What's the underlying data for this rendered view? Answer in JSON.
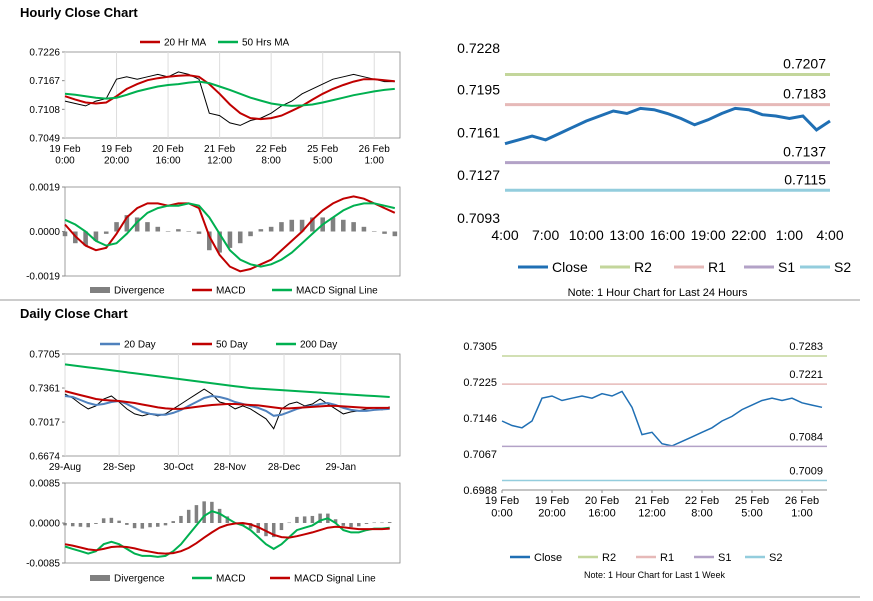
{
  "headings": [
    "Hourly Close Chart",
    "Daily Close Chart"
  ],
  "chart_data": [
    {
      "type": "line",
      "x": [
        0,
        4,
        8,
        12,
        16,
        20,
        24,
        28,
        32,
        36,
        40,
        44,
        48,
        52,
        56,
        60,
        64,
        68,
        72,
        76,
        80,
        84,
        88,
        92,
        96,
        100,
        104,
        108,
        112,
        116,
        120,
        124,
        128
      ],
      "values": [
        0.7125,
        0.712,
        0.7115,
        0.7125,
        0.713,
        0.717,
        0.7175,
        0.717,
        0.7175,
        0.718,
        0.7175,
        0.7185,
        0.718,
        0.717,
        0.71,
        0.7095,
        0.708,
        0.7075,
        0.7085,
        0.709,
        0.71,
        0.7115,
        0.7125,
        0.714,
        0.715,
        0.716,
        0.717,
        0.7175,
        0.718,
        0.7175,
        0.717,
        0.7165,
        0.7165
      ],
      "color": "#000000",
      "series": [
        {
          "name": "20 Hr MA",
          "color": "#c00000",
          "values": [
            0.7135,
            0.7128,
            0.7122,
            0.712,
            0.7122,
            0.7135,
            0.715,
            0.716,
            0.7168,
            0.7172,
            0.7175,
            0.7177,
            0.7178,
            0.7175,
            0.716,
            0.714,
            0.7118,
            0.71,
            0.709,
            0.7088,
            0.709,
            0.7095,
            0.7105,
            0.7115,
            0.7128,
            0.714,
            0.715,
            0.7158,
            0.7165,
            0.717,
            0.717,
            0.7168,
            0.7166
          ]
        },
        {
          "name": "50 Hrs MA",
          "color": "#00b050",
          "values": [
            0.714,
            0.7138,
            0.7135,
            0.7132,
            0.713,
            0.7132,
            0.7138,
            0.7145,
            0.715,
            0.7155,
            0.7158,
            0.716,
            0.7163,
            0.7165,
            0.7162,
            0.7155,
            0.7148,
            0.714,
            0.7132,
            0.7126,
            0.712,
            0.7117,
            0.7115,
            0.7116,
            0.7118,
            0.7122,
            0.7127,
            0.7132,
            0.7137,
            0.7141,
            0.7145,
            0.7148,
            0.715
          ]
        }
      ],
      "xlim": [
        0,
        130
      ],
      "xticks": [
        {
          "value": 0,
          "label": "19 Feb\n0:00"
        },
        {
          "value": 20,
          "label": "19 Feb\n20:00"
        },
        {
          "value": 40,
          "label": "20 Feb\n16:00"
        },
        {
          "value": 60,
          "label": "21 Feb\n12:00"
        },
        {
          "value": 80,
          "label": "22 Feb\n8:00"
        },
        {
          "value": 100,
          "label": "25 Feb\n5:00"
        },
        {
          "value": 120,
          "label": "26 Feb\n1:00"
        }
      ],
      "ylim": [
        0.7049,
        0.7226
      ],
      "yticks": [
        0.7049,
        0.7108,
        0.7167,
        0.7226
      ],
      "grid": true
    },
    {
      "type": "combo",
      "x": [
        0,
        4,
        8,
        12,
        16,
        20,
        24,
        28,
        32,
        36,
        40,
        44,
        48,
        52,
        56,
        60,
        64,
        68,
        72,
        76,
        80,
        84,
        88,
        92,
        96,
        100,
        104,
        108,
        112,
        116,
        120,
        124,
        128
      ],
      "series": [
        {
          "name": "Divergence",
          "color": "#808080",
          "kind": "bar",
          "values": [
            -0.0002,
            -0.0005,
            -0.0006,
            -0.0004,
            -0.0001,
            0.0004,
            0.0007,
            0.0006,
            0.0004,
            0.0002,
            0,
            0.0001,
            0,
            -0.0001,
            -0.0008,
            -0.0009,
            -0.0007,
            -0.0005,
            -0.0002,
            0.0001,
            0.0002,
            0.0004,
            0.0005,
            0.0005,
            0.0006,
            0.0006,
            0.0006,
            0.0005,
            0.0004,
            0.0002,
            0,
            -0.0001,
            -0.0002
          ]
        },
        {
          "name": "MACD",
          "color": "#c00000",
          "values": [
            0.0003,
            -0.0002,
            -0.0006,
            -0.0008,
            -0.0007,
            -0.0001,
            0.0006,
            0.001,
            0.0012,
            0.0012,
            0.0011,
            0.0012,
            0.0012,
            0.001,
            -0.0002,
            -0.001,
            -0.0015,
            -0.0017,
            -0.0016,
            -0.0014,
            -0.0012,
            -0.0008,
            -0.0004,
            0.0,
            0.0005,
            0.0009,
            0.0012,
            0.0014,
            0.0015,
            0.0014,
            0.0012,
            0.001,
            0.0008
          ]
        },
        {
          "name": "MACD Signal Line",
          "color": "#00b050",
          "values": [
            0.0005,
            0.0003,
            0.0,
            -0.0004,
            -0.0006,
            -0.0005,
            -0.0001,
            0.0004,
            0.0008,
            0.001,
            0.0011,
            0.0011,
            0.0012,
            0.0011,
            0.0006,
            -0.0001,
            -0.0008,
            -0.0012,
            -0.0014,
            -0.0015,
            -0.0014,
            -0.0012,
            -0.0009,
            -0.0005,
            -0.0001,
            0.0003,
            0.0006,
            0.0009,
            0.0011,
            0.0012,
            0.0012,
            0.0011,
            0.001
          ]
        }
      ],
      "xlim": [
        0,
        130
      ],
      "ylim": [
        -0.0019,
        0.0019
      ],
      "yticks": [
        -0.0019,
        {
          "value": 0,
          "label": "0.0000"
        },
        0.0019
      ]
    },
    {
      "type": "line",
      "x": [
        0,
        1,
        2,
        3,
        4,
        5,
        6,
        7,
        8,
        9,
        10,
        11,
        12,
        13,
        14,
        15,
        16,
        17,
        18,
        19,
        20,
        21,
        22,
        23,
        24
      ],
      "series": [
        {
          "name": "Close",
          "color": "#1f6fb4",
          "values": [
            0.7152,
            0.7155,
            0.7158,
            0.7155,
            0.716,
            0.7165,
            0.717,
            0.7174,
            0.7178,
            0.7176,
            0.718,
            0.7179,
            0.7176,
            0.7172,
            0.7167,
            0.7171,
            0.7176,
            0.718,
            0.7179,
            0.7175,
            0.7174,
            0.7172,
            0.7174,
            0.7163,
            0.717
          ]
        },
        {
          "name": "R2",
          "color": "#c3d69b",
          "value": 0.7207
        },
        {
          "name": "R1",
          "color": "#e6b9b8",
          "value": 0.7183
        },
        {
          "name": "S1",
          "color": "#b3a2c7",
          "value": 0.7137
        },
        {
          "name": "S2",
          "color": "#93cddd",
          "value": 0.7115
        }
      ],
      "xlim": [
        0,
        24
      ],
      "xticks": [
        {
          "value": 0,
          "label": "4:00"
        },
        {
          "value": 3,
          "label": "7:00"
        },
        {
          "value": 6,
          "label": "10:00"
        },
        {
          "value": 9,
          "label": "13:00"
        },
        {
          "value": 12,
          "label": "16:00"
        },
        {
          "value": 15,
          "label": "19:00"
        },
        {
          "value": 18,
          "label": "22:00"
        },
        {
          "value": 21,
          "label": "1:00"
        },
        {
          "value": 24,
          "label": "4:00"
        }
      ],
      "ylim": [
        0.7093,
        0.7228
      ],
      "yticks": [
        0.7093,
        0.7127,
        0.7161,
        0.7195,
        0.7228
      ],
      "note": "Note: 1 Hour Chart for Last 24 Hours"
    },
    {
      "type": "line",
      "x": [
        0,
        3,
        6,
        9,
        12,
        15,
        18,
        21,
        24,
        27,
        30,
        33,
        36,
        39,
        42,
        45,
        48,
        51,
        54,
        57,
        60,
        63,
        66,
        69,
        72,
        75,
        78,
        81,
        84,
        87,
        90,
        93,
        96,
        99,
        102,
        105,
        108,
        111,
        114,
        117,
        120,
        123,
        126
      ],
      "values": [
        0.73,
        0.726,
        0.72,
        0.715,
        0.718,
        0.725,
        0.728,
        0.722,
        0.715,
        0.71,
        0.708,
        0.71,
        0.708,
        0.71,
        0.715,
        0.72,
        0.725,
        0.73,
        0.735,
        0.73,
        0.722,
        0.72,
        0.715,
        0.718,
        0.715,
        0.71,
        0.705,
        0.695,
        0.715,
        0.72,
        0.722,
        0.718,
        0.72,
        0.725,
        0.72,
        0.715,
        0.71,
        0.712,
        0.713,
        0.715,
        0.716,
        0.714,
        0.717
      ],
      "color": "#000000",
      "series": [
        {
          "name": "20 Day",
          "color": "#4f81bd",
          "values": [
            0.728,
            0.727,
            0.724,
            0.721,
            0.719,
            0.72,
            0.722,
            0.723,
            0.72,
            0.716,
            0.712,
            0.71,
            0.709,
            0.709,
            0.711,
            0.714,
            0.718,
            0.722,
            0.726,
            0.728,
            0.727,
            0.725,
            0.722,
            0.72,
            0.718,
            0.716,
            0.713,
            0.708,
            0.709,
            0.712,
            0.715,
            0.717,
            0.718,
            0.72,
            0.721,
            0.719,
            0.716,
            0.714,
            0.713,
            0.713,
            0.714,
            0.7145,
            0.715
          ]
        },
        {
          "name": "50 Day",
          "color": "#c00000",
          "values": [
            0.733,
            0.731,
            0.729,
            0.727,
            0.725,
            0.724,
            0.7235,
            0.723,
            0.722,
            0.721,
            0.7195,
            0.718,
            0.7165,
            0.7155,
            0.715,
            0.715,
            0.716,
            0.717,
            0.718,
            0.719,
            0.7195,
            0.72,
            0.72,
            0.7195,
            0.719,
            0.7185,
            0.7175,
            0.7165,
            0.7155,
            0.7155,
            0.716,
            0.7165,
            0.717,
            0.7175,
            0.718,
            0.718,
            0.7175,
            0.717,
            0.7165,
            0.716,
            0.716,
            0.716,
            0.716
          ]
        },
        {
          "name": "200 Day",
          "color": "#00b050",
          "values": [
            0.76,
            0.759,
            0.758,
            0.757,
            0.756,
            0.755,
            0.754,
            0.753,
            0.752,
            0.751,
            0.75,
            0.749,
            0.748,
            0.747,
            0.746,
            0.745,
            0.744,
            0.743,
            0.742,
            0.741,
            0.74,
            0.739,
            0.738,
            0.737,
            0.736,
            0.7355,
            0.735,
            0.7345,
            0.734,
            0.7335,
            0.733,
            0.7325,
            0.732,
            0.7315,
            0.731,
            0.7305,
            0.73,
            0.7295,
            0.729,
            0.7285,
            0.728,
            0.7275,
            0.727
          ]
        }
      ],
      "xlim": [
        0,
        130
      ],
      "xticks": [
        {
          "value": 0,
          "label": "29-Aug"
        },
        {
          "value": 21,
          "label": "28-Sep"
        },
        {
          "value": 44,
          "label": "30-Oct"
        },
        {
          "value": 64,
          "label": "28-Nov"
        },
        {
          "value": 85,
          "label": "28-Dec"
        },
        {
          "value": 107,
          "label": "29-Jan"
        }
      ],
      "ylim": [
        0.6674,
        0.7705
      ],
      "yticks": [
        0.6674,
        0.7017,
        0.7361,
        0.7705
      ],
      "grid": true
    },
    {
      "type": "combo",
      "x": [
        0,
        3,
        6,
        9,
        12,
        15,
        18,
        21,
        24,
        27,
        30,
        33,
        36,
        39,
        42,
        45,
        48,
        51,
        54,
        57,
        60,
        63,
        66,
        69,
        72,
        75,
        78,
        81,
        84,
        87,
        90,
        93,
        96,
        99,
        102,
        105,
        108,
        111,
        114,
        117,
        120,
        123,
        126
      ],
      "series": [
        {
          "name": "Divergence",
          "color": "#808080",
          "kind": "bar",
          "values": [
            -0.0005,
            -0.0007,
            -0.0008,
            -0.0009,
            -0.0002,
            0.001,
            0.0011,
            0.0005,
            -0.0004,
            -0.0011,
            -0.0012,
            -0.0009,
            -0.0008,
            -0.0005,
            0.0004,
            0.0015,
            0.0028,
            0.0038,
            0.0046,
            0.0045,
            0.003,
            0.0014,
            0.0001,
            -0.0005,
            -0.0012,
            -0.0021,
            -0.0028,
            -0.003,
            -0.0015,
            0.0001,
            0.0013,
            0.0014,
            0.0015,
            0.002,
            0.002,
            0.0008,
            -0.0006,
            -0.0009,
            -0.0007,
            -0.0002,
            0.0001,
            0.0001,
            0.0002
          ]
        },
        {
          "name": "MACD",
          "color": "#00b050",
          "values": [
            -0.005,
            -0.0055,
            -0.006,
            -0.0065,
            -0.006,
            -0.0045,
            -0.004,
            -0.0045,
            -0.0055,
            -0.0065,
            -0.007,
            -0.007,
            -0.0072,
            -0.007,
            -0.006,
            -0.0045,
            -0.0025,
            -0.0005,
            0.0015,
            0.0025,
            0.002,
            0.001,
            0.0,
            -0.0005,
            -0.0015,
            -0.003,
            -0.0045,
            -0.0055,
            -0.0045,
            -0.003,
            -0.0015,
            -0.001,
            -0.0005,
            0.0005,
            0.001,
            0.0,
            -0.0015,
            -0.002,
            -0.002,
            -0.0015,
            -0.0012,
            -0.0012,
            -0.001
          ]
        },
        {
          "name": "MACD Signal Line",
          "color": "#c00000",
          "values": [
            -0.0045,
            -0.0048,
            -0.0052,
            -0.0056,
            -0.0058,
            -0.0055,
            -0.0051,
            -0.005,
            -0.0051,
            -0.0054,
            -0.0058,
            -0.0061,
            -0.0064,
            -0.0065,
            -0.0064,
            -0.006,
            -0.0053,
            -0.0043,
            -0.0031,
            -0.002,
            -0.001,
            -0.0004,
            -0.0001,
            0.0,
            -0.0003,
            -0.0009,
            -0.0017,
            -0.0025,
            -0.003,
            -0.0031,
            -0.0028,
            -0.0024,
            -0.002,
            -0.0015,
            -0.001,
            -0.0008,
            -0.0009,
            -0.0011,
            -0.0013,
            -0.0013,
            -0.0013,
            -0.0013,
            -0.0012
          ]
        }
      ],
      "xlim": [
        0,
        130
      ],
      "ylim": [
        -0.0085,
        0.0085
      ],
      "yticks": [
        -0.0085,
        {
          "value": 0,
          "label": "0.0000"
        },
        0.0085
      ]
    },
    {
      "type": "line",
      "x": [
        0,
        4,
        8,
        12,
        16,
        20,
        24,
        28,
        32,
        36,
        40,
        44,
        48,
        52,
        56,
        60,
        64,
        68,
        72,
        76,
        80,
        84,
        88,
        92,
        96,
        100,
        104,
        108,
        112,
        116,
        120,
        124,
        128
      ],
      "series": [
        {
          "name": "Close",
          "color": "#1f6fb4",
          "values": [
            0.714,
            0.713,
            0.7125,
            0.714,
            0.719,
            0.7195,
            0.7185,
            0.719,
            0.7195,
            0.719,
            0.72,
            0.7195,
            0.7205,
            0.717,
            0.711,
            0.7115,
            0.709,
            0.7085,
            0.7095,
            0.7105,
            0.7115,
            0.7125,
            0.714,
            0.715,
            0.7165,
            0.7175,
            0.7185,
            0.719,
            0.7185,
            0.719,
            0.718,
            0.7175,
            0.717
          ]
        },
        {
          "name": "R2",
          "color": "#c3d69b",
          "value": 0.7283
        },
        {
          "name": "R1",
          "color": "#e6b9b8",
          "value": 0.7221
        },
        {
          "name": "S1",
          "color": "#b3a2c7",
          "value": 0.7084
        },
        {
          "name": "S2",
          "color": "#93cddd",
          "value": 0.7009
        }
      ],
      "xlim": [
        0,
        130
      ],
      "xticks": [
        {
          "value": 0,
          "label": "19 Feb\n0:00"
        },
        {
          "value": 20,
          "label": "19 Feb\n20:00"
        },
        {
          "value": 40,
          "label": "20 Feb\n16:00"
        },
        {
          "value": 60,
          "label": "21 Feb\n12:00"
        },
        {
          "value": 80,
          "label": "22 Feb\n8:00"
        },
        {
          "value": 100,
          "label": "25 Feb\n5:00"
        },
        {
          "value": 120,
          "label": "26 Feb\n1:00"
        }
      ],
      "ylim": [
        0.6988,
        0.7305
      ],
      "yticks": [
        0.6988,
        0.7067,
        0.7146,
        0.7225,
        0.7305
      ],
      "note": "Note: 1 Hour Chart for Last 1 Week"
    }
  ]
}
